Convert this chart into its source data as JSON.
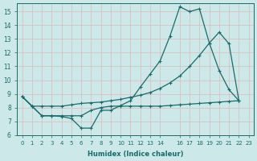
{
  "xlabel": "Humidex (Indice chaleur)",
  "bg_color": "#cce8e8",
  "grid_color": "#aacccc",
  "line_color": "#1a6b6b",
  "xlim": [
    -0.5,
    23.5
  ],
  "ylim": [
    6,
    15.6
  ],
  "xtick_labels": [
    "0",
    "1",
    "2",
    "3",
    "4",
    "5",
    "6",
    "7",
    "8",
    "9",
    "10",
    "11",
    "12",
    "13",
    "14",
    "16",
    "17",
    "18",
    "19",
    "20",
    "21",
    "22",
    "23"
  ],
  "xtick_pos": [
    0,
    1,
    2,
    3,
    4,
    5,
    6,
    7,
    8,
    9,
    10,
    11,
    12,
    13,
    14,
    16,
    17,
    18,
    19,
    20,
    21,
    22,
    23
  ],
  "yticks": [
    6,
    7,
    8,
    9,
    10,
    11,
    12,
    13,
    14,
    15
  ],
  "line1_x": [
    0,
    1,
    2,
    3,
    4,
    5,
    6,
    7,
    8,
    9,
    10,
    11,
    12,
    13,
    14,
    15,
    16,
    17,
    18,
    19,
    20,
    21,
    22
  ],
  "line1_y": [
    8.8,
    8.1,
    7.4,
    7.4,
    7.35,
    7.2,
    6.5,
    6.5,
    7.8,
    7.8,
    8.15,
    8.5,
    9.5,
    10.45,
    11.4,
    13.2,
    15.35,
    15.0,
    15.2,
    12.7,
    10.7,
    9.3,
    8.5
  ],
  "line2_x": [
    0,
    1,
    2,
    3,
    4,
    5,
    6,
    7,
    8,
    9,
    10,
    11,
    12,
    13,
    14,
    15,
    16,
    17,
    18,
    19,
    20,
    21,
    22
  ],
  "line2_y": [
    8.8,
    8.1,
    8.1,
    8.1,
    8.1,
    8.2,
    8.3,
    8.35,
    8.4,
    8.5,
    8.6,
    8.75,
    8.9,
    9.1,
    9.4,
    9.8,
    10.3,
    11.0,
    11.8,
    12.7,
    13.5,
    12.65,
    8.5
  ],
  "line3_x": [
    0,
    1,
    2,
    3,
    4,
    5,
    6,
    7,
    8,
    9,
    10,
    11,
    12,
    13,
    14,
    15,
    16,
    17,
    18,
    19,
    20,
    21,
    22
  ],
  "line3_y": [
    8.8,
    8.1,
    7.4,
    7.4,
    7.4,
    7.4,
    7.4,
    7.8,
    8.0,
    8.1,
    8.1,
    8.1,
    8.1,
    8.1,
    8.1,
    8.15,
    8.2,
    8.25,
    8.3,
    8.35,
    8.4,
    8.45,
    8.5
  ]
}
